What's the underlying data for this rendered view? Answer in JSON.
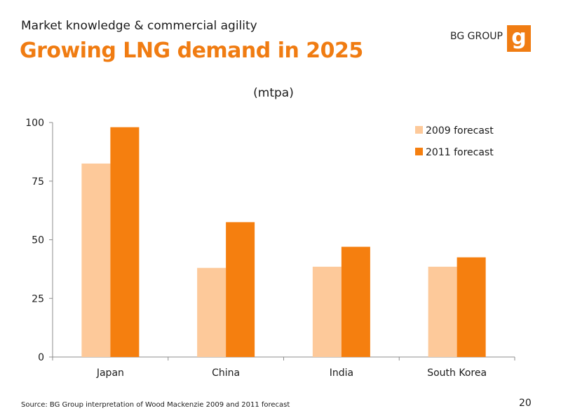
{
  "header": {
    "subtitle": "Market knowledge & commercial agility",
    "title": "Growing LNG demand in 2025",
    "brand": "BG GROUP",
    "logo_letter": "g"
  },
  "footer": {
    "source": "Source: BG Group interpretation of Wood Mackenzie 2009 and 2011 forecast",
    "page_number": "20"
  },
  "colors": {
    "accent": "#f07c12",
    "series_2009": "#fdc99a",
    "series_2011": "#f57f0f"
  },
  "chart_data": {
    "type": "bar",
    "title": "(mtpa)",
    "categories": [
      "Japan",
      "China",
      "India",
      "South Korea"
    ],
    "series": [
      {
        "name": "2009 forecast",
        "values": [
          82.5,
          38,
          38.5,
          38.5
        ]
      },
      {
        "name": "2011 forecast",
        "values": [
          98,
          57.5,
          47,
          42.5
        ]
      }
    ],
    "yticks": [
      "0",
      "25",
      "50",
      "75",
      "100"
    ],
    "ylim": [
      0,
      100
    ],
    "legend": "top-right",
    "grid": false
  }
}
